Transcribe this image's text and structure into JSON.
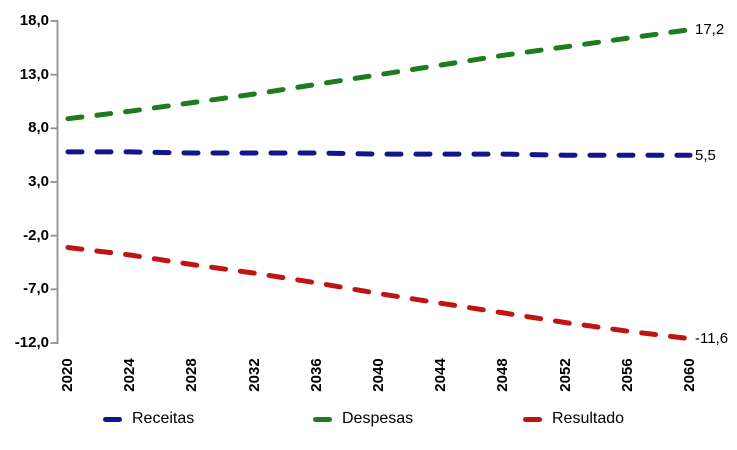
{
  "chart_data": {
    "type": "line",
    "title": "",
    "xlabel": "",
    "ylabel": "",
    "grid": false,
    "line_style": "dashed",
    "axis_color": "#909090",
    "text_color": "#000000",
    "background_color": "#ffffff",
    "x_categories": [
      "2020",
      "2024",
      "2028",
      "2032",
      "2036",
      "2040",
      "2044",
      "2048",
      "2052",
      "2056",
      "2060"
    ],
    "x_values": [
      2020,
      2024,
      2028,
      2032,
      2036,
      2040,
      2044,
      2048,
      2052,
      2056,
      2060
    ],
    "y_axis": {
      "tick_labels": [
        "18,0",
        "13,0",
        "8,0",
        "3,0",
        "-2,0",
        "-7,0",
        "-12,0"
      ],
      "tick_values": [
        18,
        13,
        8,
        3,
        -2,
        -7,
        -12
      ],
      "ylim": [
        -12,
        18
      ]
    },
    "series": [
      {
        "name": "Receitas",
        "color": "#14148F",
        "values": [
          5.8,
          5.8,
          5.7,
          5.7,
          5.7,
          5.6,
          5.6,
          5.6,
          5.5,
          5.5,
          5.5
        ],
        "end_label": "5,5"
      },
      {
        "name": "Despesas",
        "color": "#1E7B1E",
        "values": [
          8.9,
          9.6,
          10.4,
          11.2,
          12.1,
          13.0,
          13.9,
          14.8,
          15.6,
          16.4,
          17.2
        ],
        "end_label": "17,2"
      },
      {
        "name": "Resultado",
        "color": "#C01414",
        "values": [
          -3.1,
          -3.8,
          -4.7,
          -5.5,
          -6.4,
          -7.4,
          -8.3,
          -9.2,
          -10.1,
          -10.9,
          -11.6
        ],
        "end_label": "-11,6"
      }
    ],
    "legend": {
      "position": "bottom",
      "entries": [
        "Receitas",
        "Despesas",
        "Resultado"
      ]
    }
  }
}
